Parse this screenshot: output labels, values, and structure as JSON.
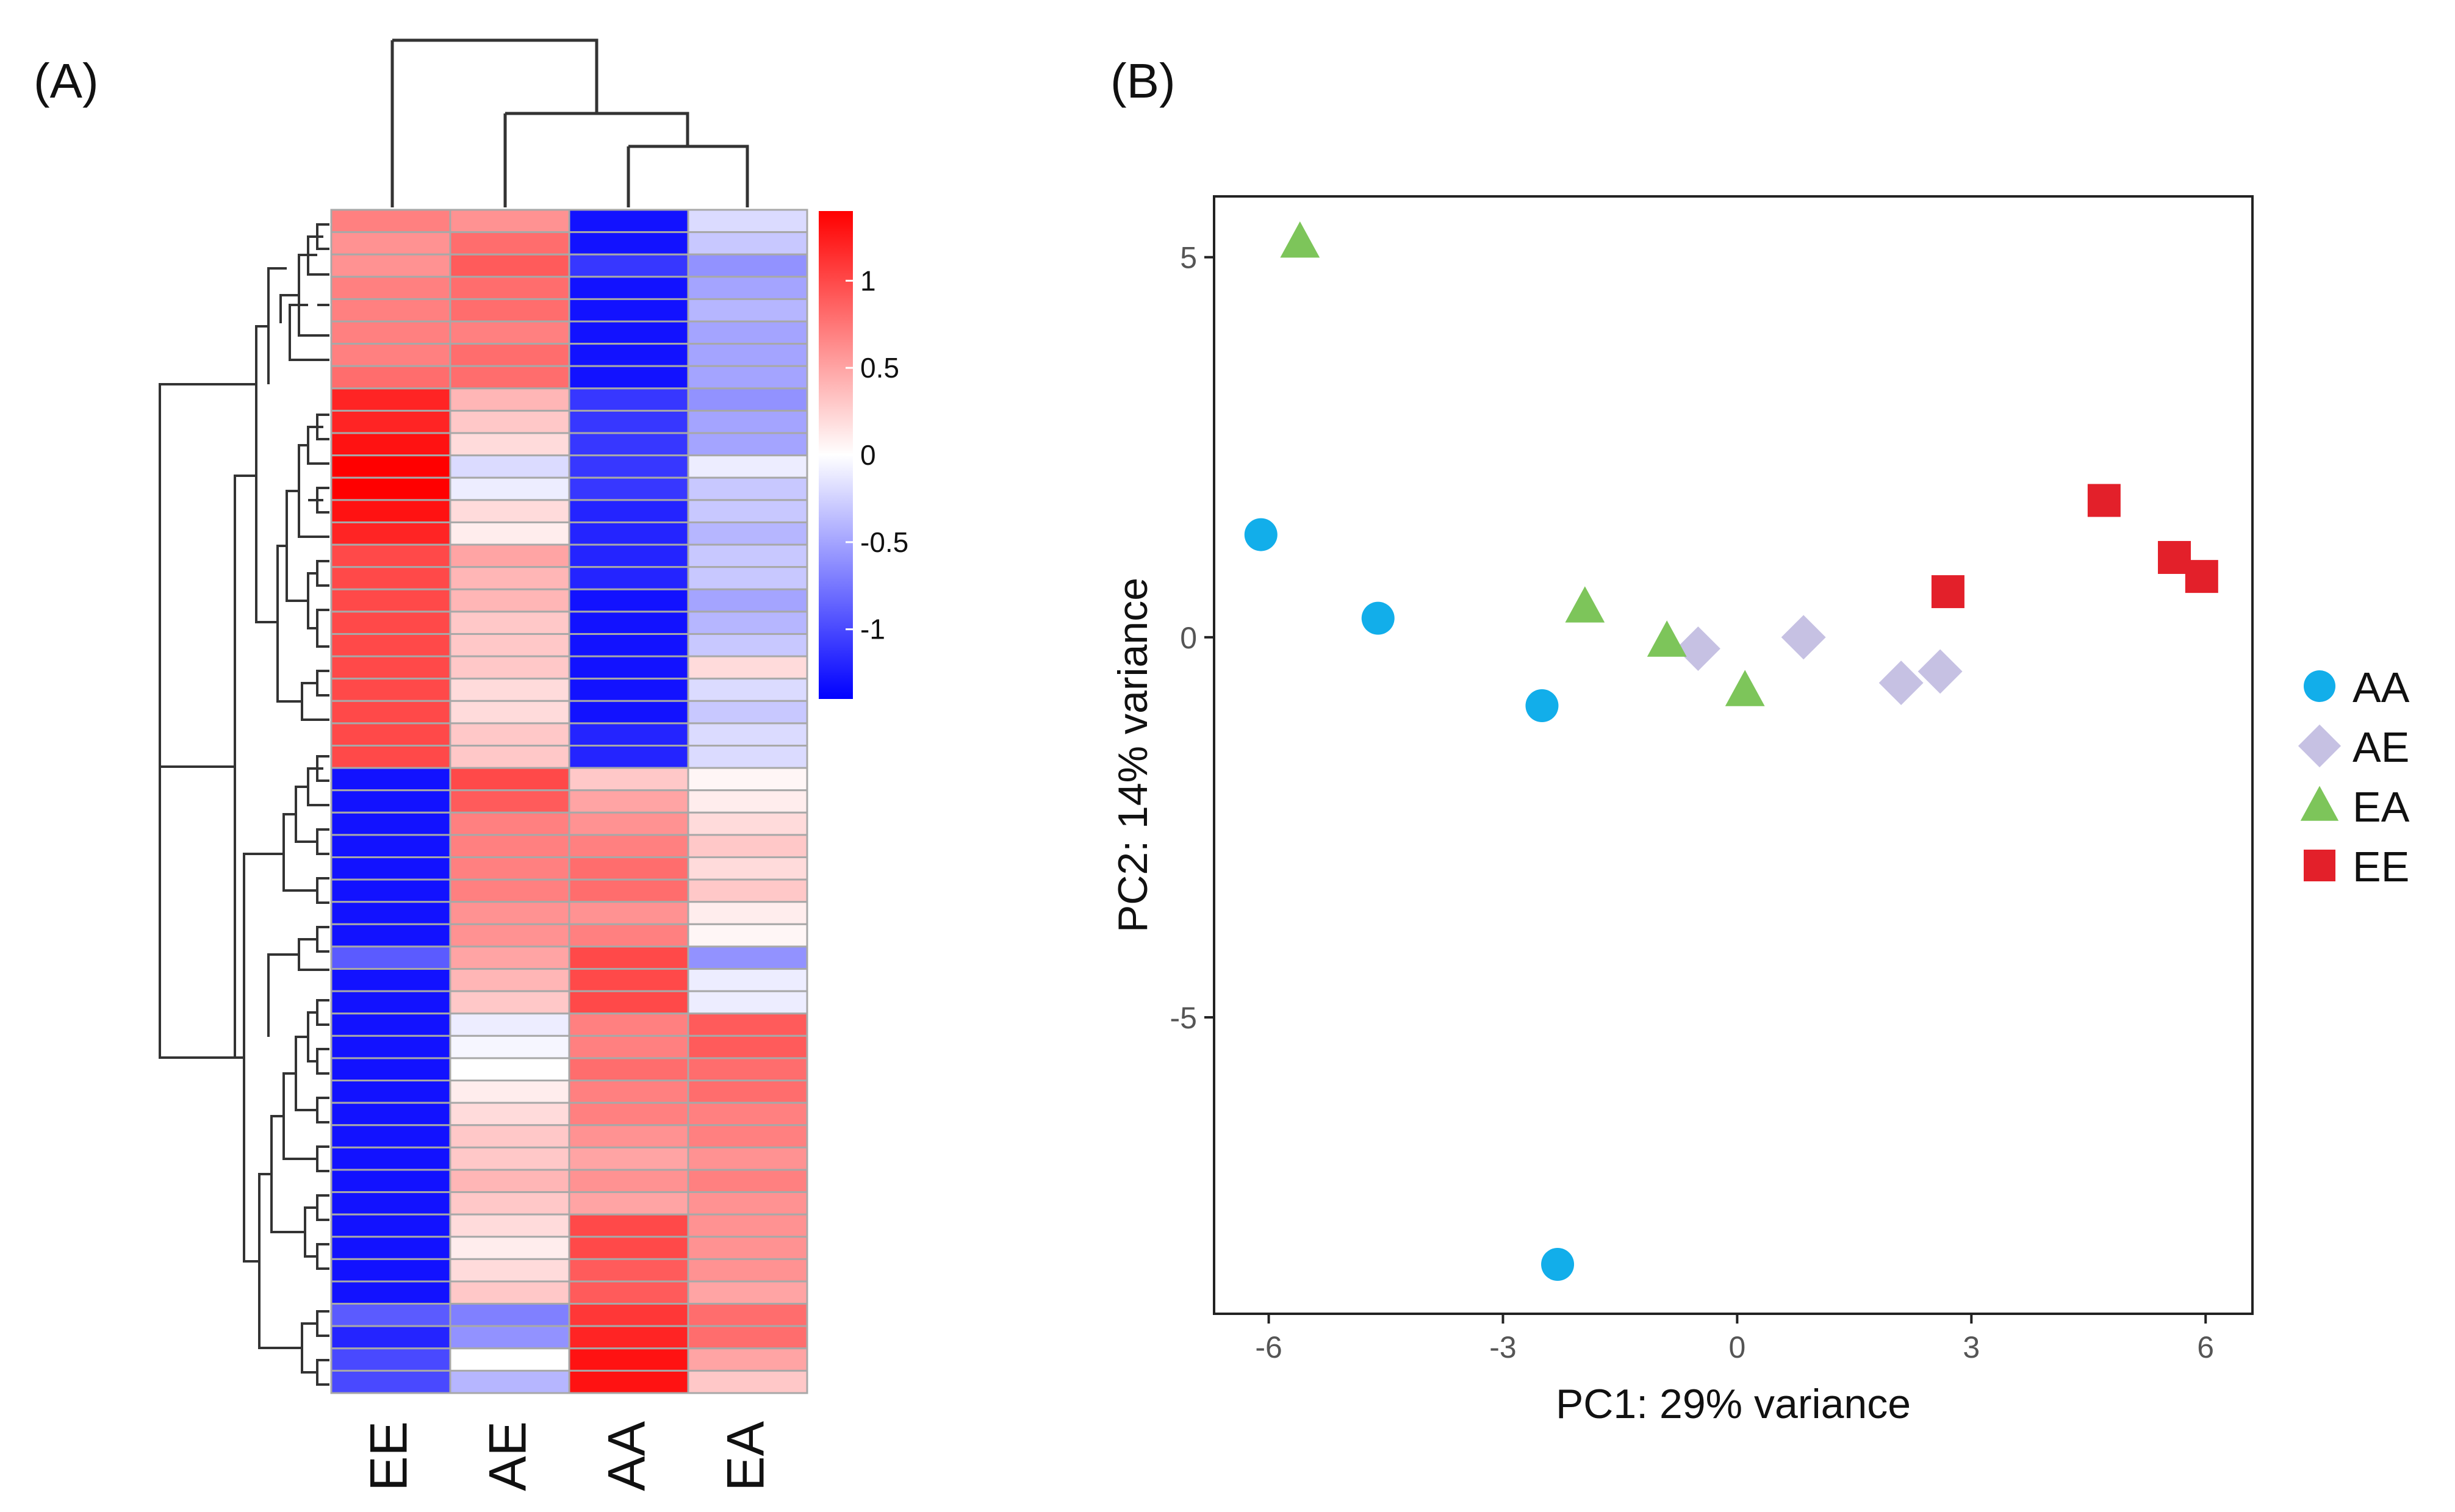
{
  "colors": {
    "heat_low": "#0000ff",
    "heat_mid": "#ffffff",
    "heat_high": "#ff0000",
    "cell_border": "#a8a8a8",
    "dendrogram": "#333333",
    "axis": "#222222",
    "AA": "#12aeea",
    "AE": "#c6c1e3",
    "EA": "#7dc55a",
    "EE": "#e3202a"
  },
  "chart_data": [
    {
      "panel_label": "(A)",
      "type": "heatmap",
      "columns": [
        "EE",
        "AE",
        "AA",
        "EA"
      ],
      "colorbar": {
        "min": -1.4,
        "max": 1.4,
        "ticks": [
          1,
          0.5,
          0,
          -0.5,
          -1
        ],
        "tick_labels": [
          "1",
          "0.5",
          "0",
          "-0.5",
          "-1"
        ]
      },
      "values": [
        [
          0.7,
          0.6,
          -1.3,
          -0.2
        ],
        [
          0.6,
          0.8,
          -1.3,
          -0.3
        ],
        [
          0.6,
          0.9,
          -1.1,
          -0.6
        ],
        [
          0.7,
          0.8,
          -1.3,
          -0.5
        ],
        [
          0.7,
          0.8,
          -1.3,
          -0.4
        ],
        [
          0.7,
          0.7,
          -1.3,
          -0.5
        ],
        [
          0.7,
          0.8,
          -1.3,
          -0.5
        ],
        [
          0.8,
          0.8,
          -1.3,
          -0.5
        ],
        [
          1.2,
          0.4,
          -1.1,
          -0.6
        ],
        [
          1.2,
          0.3,
          -1.1,
          -0.5
        ],
        [
          1.3,
          0.2,
          -1.1,
          -0.5
        ],
        [
          1.4,
          -0.2,
          -1.1,
          -0.1
        ],
        [
          1.4,
          -0.1,
          -1.1,
          -0.3
        ],
        [
          1.3,
          0.2,
          -1.2,
          -0.3
        ],
        [
          1.2,
          0.1,
          -1.2,
          -0.4
        ],
        [
          1.0,
          0.5,
          -1.2,
          -0.3
        ],
        [
          1.0,
          0.4,
          -1.2,
          -0.3
        ],
        [
          1.0,
          0.4,
          -1.3,
          -0.5
        ],
        [
          1.0,
          0.3,
          -1.3,
          -0.4
        ],
        [
          1.0,
          0.3,
          -1.3,
          -0.3
        ],
        [
          1.0,
          0.3,
          -1.3,
          0.2
        ],
        [
          1.0,
          0.2,
          -1.3,
          -0.2
        ],
        [
          1.0,
          0.2,
          -1.3,
          -0.3
        ],
        [
          1.0,
          0.3,
          -1.2,
          -0.2
        ],
        [
          1.0,
          0.3,
          -1.2,
          -0.2
        ],
        [
          -1.3,
          1.0,
          0.3,
          0.05
        ],
        [
          -1.3,
          0.9,
          0.5,
          0.1
        ],
        [
          -1.3,
          0.7,
          0.6,
          0.2
        ],
        [
          -1.3,
          0.7,
          0.7,
          0.3
        ],
        [
          -1.3,
          0.7,
          0.8,
          0.2
        ],
        [
          -1.3,
          0.7,
          0.8,
          0.3
        ],
        [
          -1.3,
          0.6,
          0.6,
          0.1
        ],
        [
          -1.3,
          0.6,
          0.7,
          0.05
        ],
        [
          -0.9,
          0.5,
          1.0,
          -0.6
        ],
        [
          -1.3,
          0.4,
          1.0,
          -0.1
        ],
        [
          -1.3,
          0.3,
          1.0,
          -0.1
        ],
        [
          -1.3,
          -0.1,
          0.7,
          0.9
        ],
        [
          -1.3,
          -0.05,
          0.7,
          0.9
        ],
        [
          -1.3,
          0.0,
          0.8,
          0.8
        ],
        [
          -1.3,
          0.1,
          0.7,
          0.8
        ],
        [
          -1.3,
          0.2,
          0.7,
          0.7
        ],
        [
          -1.3,
          0.3,
          0.6,
          0.7
        ],
        [
          -1.3,
          0.3,
          0.5,
          0.6
        ],
        [
          -1.3,
          0.4,
          0.6,
          0.7
        ],
        [
          -1.3,
          0.3,
          0.5,
          0.6
        ],
        [
          -1.3,
          0.2,
          1.0,
          0.6
        ],
        [
          -1.3,
          0.1,
          1.0,
          0.6
        ],
        [
          -1.3,
          0.2,
          0.9,
          0.6
        ],
        [
          -1.3,
          0.3,
          0.9,
          0.5
        ],
        [
          -0.9,
          -0.7,
          1.1,
          0.8
        ],
        [
          -1.2,
          -0.6,
          1.2,
          0.8
        ],
        [
          -1.0,
          0.0,
          1.3,
          0.5
        ],
        [
          -1.0,
          -0.4,
          1.3,
          0.3
        ]
      ]
    },
    {
      "panel_label": "(B)",
      "type": "scatter",
      "xlabel": "PC1: 29% variance",
      "ylabel": "PC2: 14% variance",
      "xlim": [
        -6.7,
        6.6
      ],
      "ylim": [
        -8.9,
        5.8
      ],
      "xticks": [
        -6,
        -3,
        0,
        3,
        6
      ],
      "yticks": [
        5,
        0,
        -5
      ],
      "series": [
        {
          "name": "AA",
          "shape": "circle",
          "x": [
            -6.1,
            -4.6,
            -2.5,
            -2.3
          ],
          "y": [
            1.35,
            0.25,
            -0.9,
            -8.25
          ]
        },
        {
          "name": "AE",
          "shape": "diamond",
          "x": [
            -0.5,
            0.85,
            2.1,
            2.6
          ],
          "y": [
            -0.15,
            0.0,
            -0.6,
            -0.45
          ]
        },
        {
          "name": "EA",
          "shape": "triangle",
          "x": [
            -5.6,
            -1.95,
            -0.9,
            0.1
          ],
          "y": [
            5.2,
            0.4,
            -0.05,
            -0.7
          ]
        },
        {
          "name": "EE",
          "shape": "square",
          "x": [
            2.7,
            4.7,
            5.6,
            5.95
          ],
          "y": [
            0.6,
            1.8,
            1.05,
            0.8
          ]
        }
      ],
      "legend_position": "right"
    }
  ]
}
